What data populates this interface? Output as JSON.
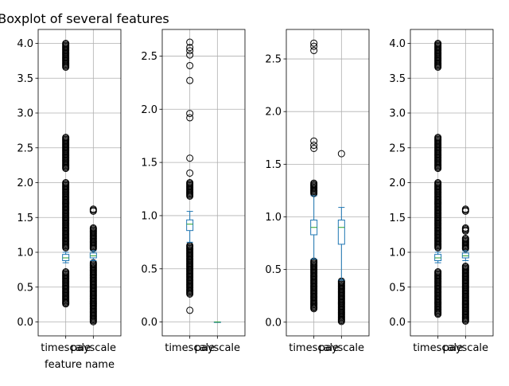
{
  "figure": {
    "title": "Boxplot of several features"
  },
  "chart_data": [
    {
      "type": "box",
      "title": "Boxplot of several features",
      "xlabel": "feature name",
      "categories": [
        "timescale",
        "payscale"
      ],
      "ylim": [
        -0.2,
        4.2
      ],
      "yticks": [
        0.0,
        0.5,
        1.0,
        1.5,
        2.0,
        2.5,
        3.0,
        3.5,
        4.0
      ],
      "ytick_labels": [
        "0.0",
        "0.5",
        "1.0",
        "1.5",
        "2.0",
        "2.5",
        "3.0",
        "3.5",
        "4.0"
      ],
      "grid": true,
      "boxes": [
        {
          "name": "timescale",
          "q1": 0.88,
          "median": 0.92,
          "q3": 0.97,
          "whisker_low": 0.85,
          "whisker_high": 1.0,
          "outlier_bands": [
            [
              0.25,
              0.72
            ],
            [
              1.05,
              2.0
            ],
            [
              2.2,
              2.65
            ],
            [
              3.65,
              4.0
            ]
          ]
        },
        {
          "name": "payscale",
          "q1": 0.92,
          "median": 0.95,
          "q3": 0.99,
          "whisker_low": 0.88,
          "whisker_high": 1.02,
          "outlier_bands": [
            [
              0.0,
              0.85
            ],
            [
              1.05,
              1.35
            ],
            [
              1.58,
              1.62
            ]
          ]
        }
      ]
    },
    {
      "type": "box",
      "title": "",
      "xlabel": "",
      "categories": [
        "timescale",
        "payscale"
      ],
      "ylim": [
        -0.13,
        2.75
      ],
      "yticks": [
        0.0,
        0.5,
        1.0,
        1.5,
        2.0,
        2.5
      ],
      "ytick_labels": [
        "0.0",
        "0.5",
        "1.0",
        "1.5",
        "2.0",
        "2.5"
      ],
      "grid": true,
      "boxes": [
        {
          "name": "timescale",
          "q1": 0.86,
          "median": 0.92,
          "q3": 0.96,
          "whisker_low": 0.75,
          "whisker_high": 1.04,
          "outlier_bands": [
            [
              0.26,
              0.72
            ],
            [
              1.18,
              1.31
            ]
          ],
          "outliers": [
            0.11,
            1.4,
            1.54,
            1.92,
            1.96,
            2.27,
            2.41,
            2.51,
            2.55,
            2.58,
            2.63
          ]
        },
        {
          "name": "payscale",
          "q1": 0.0,
          "median": 0.0,
          "q3": 0.0,
          "whisker_low": 0.0,
          "whisker_high": 0.0,
          "outlier_bands": [],
          "outliers": []
        }
      ]
    },
    {
      "type": "box",
      "title": "",
      "xlabel": "",
      "categories": [
        "timescale",
        "payscale"
      ],
      "ylim": [
        -0.13,
        2.78
      ],
      "yticks": [
        0.0,
        0.5,
        1.0,
        1.5,
        2.0,
        2.5
      ],
      "ytick_labels": [
        "0.0",
        "0.5",
        "1.0",
        "1.5",
        "2.0",
        "2.5"
      ],
      "grid": true,
      "boxes": [
        {
          "name": "timescale",
          "q1": 0.83,
          "median": 0.9,
          "q3": 0.97,
          "whisker_low": 0.6,
          "whisker_high": 1.2,
          "outlier_bands": [
            [
              0.12,
              0.58
            ],
            [
              1.22,
              1.32
            ]
          ],
          "outliers": [
            1.65,
            1.68,
            1.72,
            2.58,
            2.62,
            2.65
          ]
        },
        {
          "name": "payscale",
          "q1": 0.74,
          "median": 0.9,
          "q3": 0.97,
          "whisker_low": 0.4,
          "whisker_high": 1.09,
          "outlier_bands": [
            [
              0.0,
              0.39
            ]
          ],
          "outliers": [
            1.6
          ]
        }
      ]
    },
    {
      "type": "box",
      "title": "",
      "xlabel": "",
      "categories": [
        "timescale",
        "payscale"
      ],
      "ylim": [
        -0.2,
        4.2
      ],
      "yticks": [
        0.0,
        0.5,
        1.0,
        1.5,
        2.0,
        2.5,
        3.0,
        3.5,
        4.0
      ],
      "ytick_labels": [
        "0.0",
        "0.5",
        "1.0",
        "1.5",
        "2.0",
        "2.5",
        "3.0",
        "3.5",
        "4.0"
      ],
      "grid": true,
      "boxes": [
        {
          "name": "timescale",
          "q1": 0.88,
          "median": 0.92,
          "q3": 0.97,
          "whisker_low": 0.85,
          "whisker_high": 1.0,
          "outlier_bands": [
            [
              0.1,
              0.72
            ],
            [
              1.05,
              2.0
            ],
            [
              2.2,
              2.65
            ],
            [
              3.65,
              4.0
            ]
          ]
        },
        {
          "name": "payscale",
          "q1": 0.92,
          "median": 0.95,
          "q3": 0.99,
          "whisker_low": 0.88,
          "whisker_high": 1.02,
          "outlier_bands": [
            [
              0.0,
              0.8
            ],
            [
              1.05,
              1.2
            ],
            [
              1.3,
              1.35
            ],
            [
              1.58,
              1.62
            ]
          ]
        }
      ]
    }
  ],
  "colors": {
    "box": "#1f77b4",
    "median": "#2ca02c",
    "grid": "#b0b0b0",
    "axis": "#000000",
    "outlier": "#000000"
  }
}
